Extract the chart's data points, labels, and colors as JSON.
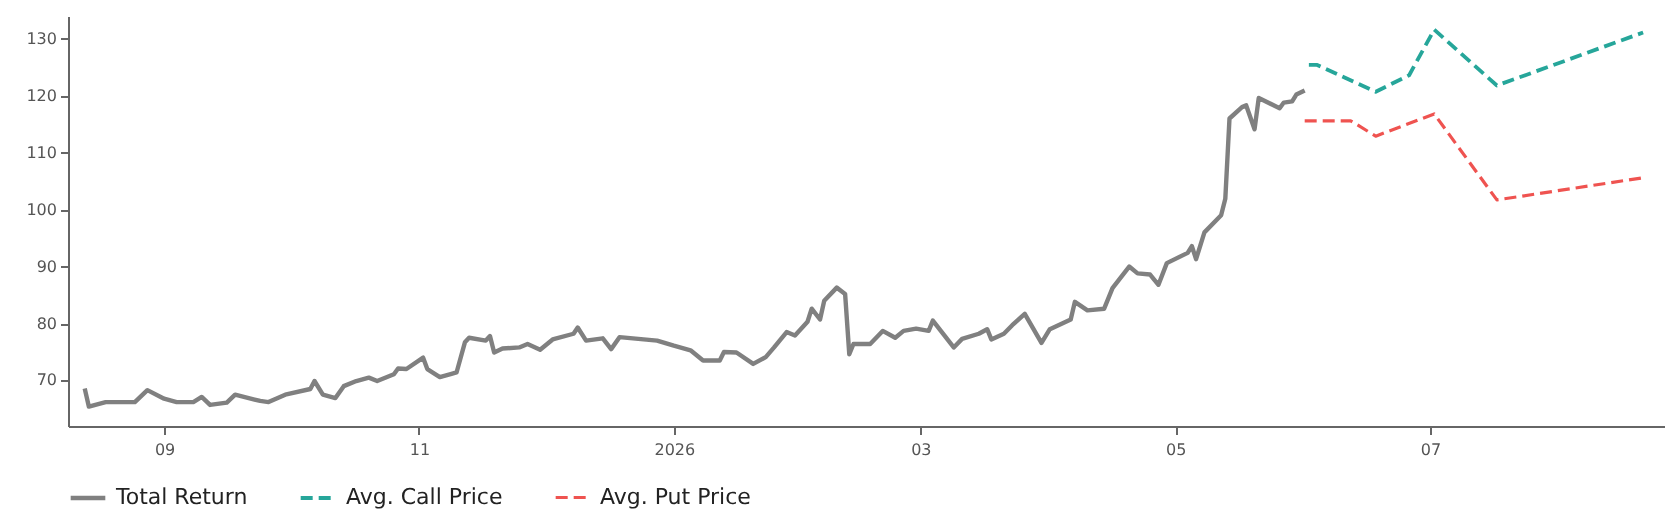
{
  "chart_data": {
    "type": "line",
    "legend": "bottom",
    "xlim": [
      "2025-08-09",
      "2026-08-26"
    ],
    "ylim": [
      62,
      134
    ],
    "xticks": [
      {
        "value": "2025-09-01",
        "label": "09"
      },
      {
        "value": "2025-11-01",
        "label": "11"
      },
      {
        "value": "2026-01-01",
        "label": "2026"
      },
      {
        "value": "2026-03-01",
        "label": "03"
      },
      {
        "value": "2026-05-01",
        "label": "05"
      },
      {
        "value": "2026-07-01",
        "label": "07"
      }
    ],
    "yticks": [
      70,
      80,
      90,
      100,
      110,
      120,
      130
    ],
    "series": [
      {
        "name": "Total Return",
        "color": "#808080",
        "line_style": "solid",
        "x": [
          "2025-08-13",
          "2025-08-14",
          "2025-08-18",
          "2025-08-25",
          "2025-08-28",
          "2025-09-01",
          "2025-09-04",
          "2025-09-08",
          "2025-09-10",
          "2025-09-12",
          "2025-09-16",
          "2025-09-18",
          "2025-09-24",
          "2025-09-26",
          "2025-09-30",
          "2025-10-06",
          "2025-10-07",
          "2025-10-09",
          "2025-10-12",
          "2025-10-14",
          "2025-10-17",
          "2025-10-20",
          "2025-10-22",
          "2025-10-26",
          "2025-10-27",
          "2025-10-29",
          "2025-11-02",
          "2025-11-03",
          "2025-11-06",
          "2025-11-09",
          "2025-11-10",
          "2025-11-12",
          "2025-11-13",
          "2025-11-17",
          "2025-11-18",
          "2025-11-19",
          "2025-11-21",
          "2025-11-25",
          "2025-11-27",
          "2025-11-30",
          "2025-12-03",
          "2025-12-08",
          "2025-12-09",
          "2025-12-11",
          "2025-12-15",
          "2025-12-17",
          "2025-12-19",
          "2025-12-28",
          "2026-01-01",
          "2026-01-05",
          "2026-01-08",
          "2026-01-12",
          "2026-01-13",
          "2026-01-16",
          "2026-01-20",
          "2026-01-23",
          "2026-01-25",
          "2026-01-28",
          "2026-01-30",
          "2026-02-02",
          "2026-02-03",
          "2026-02-05",
          "2026-02-06",
          "2026-02-09",
          "2026-02-11",
          "2026-02-12",
          "2026-02-13",
          "2026-02-17",
          "2026-02-20",
          "2026-02-23",
          "2026-02-25",
          "2026-02-28",
          "2026-03-03",
          "2026-03-04",
          "2026-03-09",
          "2026-03-11",
          "2026-03-15",
          "2026-03-17",
          "2026-03-18",
          "2026-03-21",
          "2026-03-23",
          "2026-03-26",
          "2026-03-30",
          "2026-04-01",
          "2026-04-06",
          "2026-04-07",
          "2026-04-10",
          "2026-04-14",
          "2026-04-16",
          "2026-04-20",
          "2026-04-22",
          "2026-04-25",
          "2026-04-27",
          "2026-04-29",
          "2026-05-04",
          "2026-05-05",
          "2026-05-06",
          "2026-05-08",
          "2026-05-12",
          "2026-05-13",
          "2026-05-14",
          "2026-05-17",
          "2026-05-18",
          "2026-05-20",
          "2026-05-21",
          "2026-05-26",
          "2026-05-27",
          "2026-05-29",
          "2026-05-30",
          "2026-06-01"
        ],
        "values": [
          68.6,
          65.4,
          66.2,
          66.2,
          68.3,
          66.8,
          66.2,
          66.2,
          67.1,
          65.7,
          66.1,
          67.5,
          66.4,
          66.2,
          67.5,
          68.5,
          69.9,
          67.5,
          66.9,
          69,
          69.9,
          70.5,
          69.9,
          71.1,
          72.1,
          72,
          74,
          72,
          70.6,
          71.2,
          71.4,
          76.7,
          77.5,
          77,
          77.8,
          74.9,
          75.6,
          75.8,
          76.4,
          75.4,
          77.2,
          78.2,
          79.3,
          77,
          77.4,
          75.5,
          77.6,
          77,
          76.1,
          75.3,
          73.5,
          73.5,
          75,
          74.9,
          72.9,
          74.1,
          75.8,
          78.5,
          77.9,
          80.3,
          82.6,
          80.7,
          84,
          86.3,
          85.2,
          74.6,
          76.4,
          76.4,
          78.7,
          77.5,
          78.7,
          79.1,
          78.7,
          80.5,
          75.8,
          77.3,
          78.2,
          79,
          77.2,
          78.2,
          79.7,
          81.7,
          76.6,
          79,
          80.7,
          83.8,
          82.3,
          82.6,
          86.2,
          90,
          88.8,
          88.6,
          86.8,
          90.6,
          92.4,
          93.6,
          91.3,
          96,
          99,
          101.9,
          116,
          118,
          118.3,
          114.1,
          119.6,
          117.8,
          118.8,
          119,
          120.2,
          120.9
        ]
      },
      {
        "name": "Avg. Call Price",
        "color": "#26a69a",
        "line_style": "dashed",
        "x": [
          "2026-06-02",
          "2026-06-04",
          "2026-06-18",
          "2026-06-26",
          "2026-07-02",
          "2026-07-17",
          "2026-08-21"
        ],
        "values": [
          125.4,
          125.4,
          120.7,
          123.6,
          131.6,
          121.8,
          131.1
        ]
      },
      {
        "name": "Avg. Put Price",
        "color": "#ef5350",
        "line_style": "dashed",
        "x": [
          "2026-06-01",
          "2026-06-12",
          "2026-06-18",
          "2026-07-02",
          "2026-07-17",
          "2026-08-21"
        ],
        "values": [
          115.6,
          115.6,
          112.9,
          116.8,
          101.7,
          105.6
        ]
      }
    ]
  }
}
